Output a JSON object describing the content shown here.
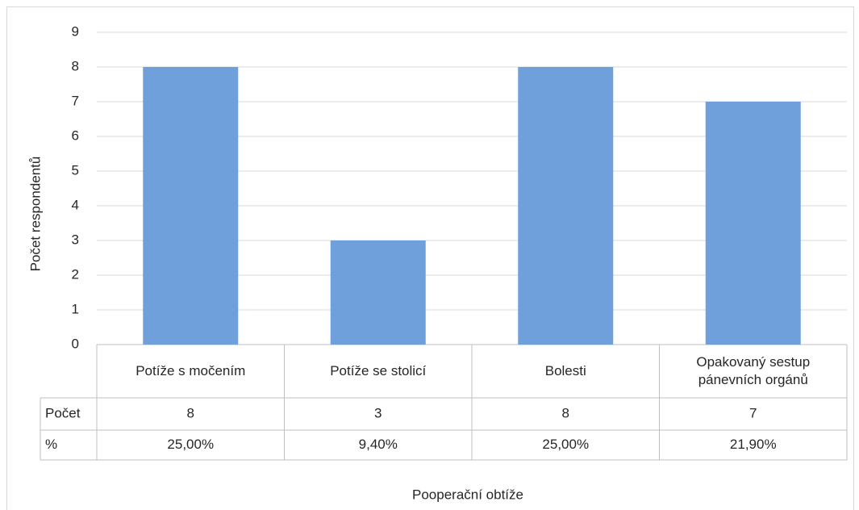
{
  "chart_data": {
    "type": "bar",
    "x_label": "Pooperační obtíže",
    "y_label": "Počet respondentů",
    "categories": [
      "Potíže s močením",
      "Potíže se stolicí",
      "Bolesti",
      "Opakovaný sestup pánevních orgánů"
    ],
    "series": [
      {
        "name": "Počet",
        "color": "#70a0dc",
        "values": [
          8,
          3,
          8,
          7
        ]
      }
    ],
    "ylim": [
      0,
      9
    ],
    "yticks": [
      0,
      1,
      2,
      3,
      4,
      5,
      6,
      7,
      8,
      9
    ],
    "grid": true,
    "data_table": {
      "rows": [
        {
          "label": "%",
          "cells": [
            "25,00%",
            "9,40%",
            "25,00%",
            "21,90%"
          ]
        }
      ]
    }
  }
}
